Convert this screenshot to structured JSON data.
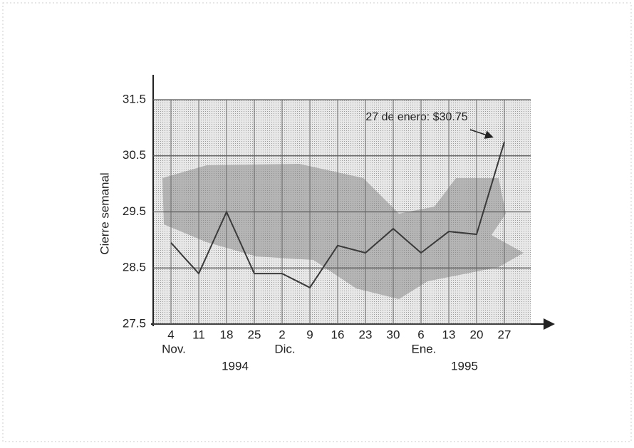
{
  "chart_data": {
    "type": "line",
    "y_label": "Cierre semanal",
    "annotation": "27 de enero: $30.75",
    "categories": [
      "4",
      "11",
      "18",
      "25",
      "2",
      "9",
      "16",
      "23",
      "30",
      "6",
      "13",
      "20",
      "27"
    ],
    "months": [
      "Nov.",
      "Dic.",
      "Ene."
    ],
    "years": [
      "1994",
      "1995"
    ],
    "series": [
      {
        "name": "Cierre semanal",
        "color": "#3a3a3a",
        "values": [
          28.95,
          28.4,
          29.5,
          28.4,
          28.4,
          28.15,
          28.9,
          28.77,
          29.2,
          28.77,
          29.15,
          29.1,
          30.75
        ]
      }
    ],
    "ylim": [
      27.5,
      31.5
    ],
    "yticks": [
      27.5,
      28.5,
      29.5,
      30.5,
      31.5
    ],
    "grid": true
  }
}
